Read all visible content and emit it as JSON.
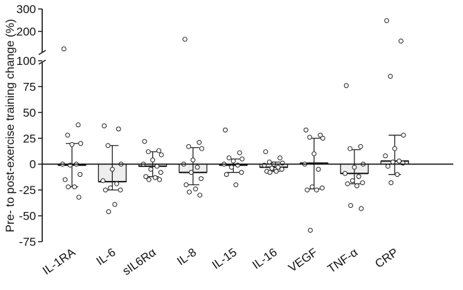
{
  "chart_data": {
    "type": "bar",
    "ylabel": "Pre- to post-exercise training change (%)",
    "xlabel": "",
    "title": "",
    "y_axis": {
      "broken": true,
      "lower_range": [
        -75,
        100
      ],
      "upper_range": [
        100,
        300
      ],
      "ticks": [
        -75,
        -50,
        -25,
        0,
        25,
        50,
        75,
        100,
        200,
        300
      ],
      "tick_labels": [
        "-75",
        "-50",
        "-25",
        "0",
        "25",
        "50",
        "75",
        "100",
        "200",
        "300"
      ]
    },
    "categories": [
      "IL-1RA",
      "IL-6",
      "sIL6Rα",
      "IL-8",
      "IL-15",
      "IL-16",
      "VEGF",
      "TNF-α",
      "CRP"
    ],
    "bar_fill": "#eeeeee",
    "point_color": "#333333",
    "series": [
      {
        "category": "IL-1RA",
        "median": -1,
        "iqr": [
          -22,
          20
        ],
        "points": [
          122,
          38,
          28,
          20,
          19,
          0,
          0,
          -1,
          -10,
          -15,
          -22,
          -22,
          -32
        ]
      },
      {
        "category": "IL-6",
        "median": -17,
        "iqr": [
          -25,
          18
        ],
        "points": [
          37,
          34,
          18,
          0,
          -5,
          -16,
          -19,
          -23,
          -25,
          -25,
          -39,
          -46
        ]
      },
      {
        "category": "sIL6Rα",
        "median": -2,
        "iqr": [
          -12,
          12
        ],
        "points": [
          22,
          13,
          12,
          9,
          4,
          0,
          -2,
          -5,
          -8,
          -12,
          -13,
          -15,
          -15
        ]
      },
      {
        "category": "IL-8",
        "median": -8,
        "iqr": [
          -20,
          16
        ],
        "points": [
          165,
          21,
          17,
          15,
          4,
          0,
          -3,
          -8,
          -14,
          -20,
          -24,
          -27,
          -30
        ]
      },
      {
        "category": "IL-15",
        "median": -1,
        "iqr": [
          -8,
          5
        ],
        "points": [
          33,
          11,
          6,
          5,
          3,
          0,
          -1,
          -3,
          -8,
          -10,
          -20
        ]
      },
      {
        "category": "IL-16",
        "median": -3,
        "iqr": [
          -7,
          2
        ],
        "points": [
          12,
          6,
          2,
          1,
          0,
          -1,
          -3,
          -4,
          -5,
          -7,
          -7,
          -8
        ]
      },
      {
        "category": "VEGF",
        "median": 1,
        "iqr": [
          -24,
          25
        ],
        "points": [
          33,
          28,
          26,
          25,
          10,
          0,
          -5,
          -22,
          -23,
          -25,
          -25,
          -64
        ]
      },
      {
        "category": "TNF-α",
        "median": -9,
        "iqr": [
          -19,
          14
        ],
        "points": [
          76,
          17,
          15,
          0,
          -3,
          -9,
          -12,
          -16,
          -18,
          -19,
          -21,
          -40,
          -43
        ]
      },
      {
        "category": "CRP",
        "median": 3,
        "iqr": [
          -10,
          28
        ],
        "points": [
          248,
          157,
          85,
          28,
          15,
          8,
          3,
          2,
          1,
          -2,
          -10,
          -18
        ]
      }
    ]
  }
}
